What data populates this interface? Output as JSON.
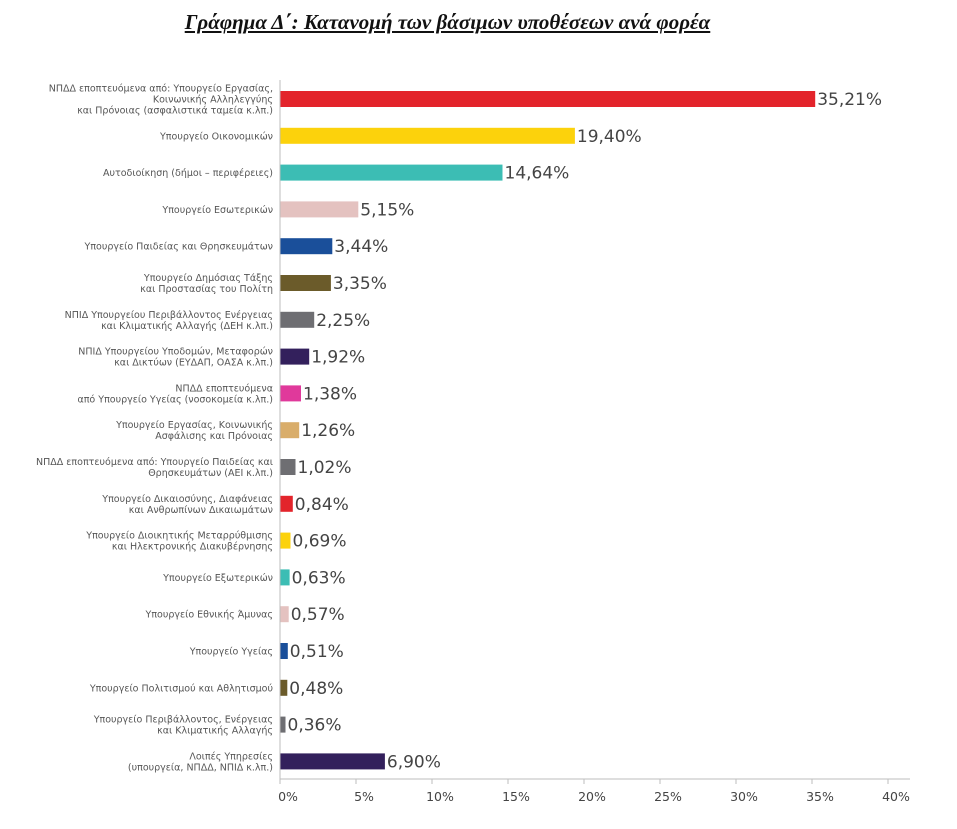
{
  "chart_data": {
    "type": "bar",
    "orientation": "horizontal",
    "title": "Γράφημα Δ΄: Κατανομή των βάσιμων υποθέσεων ανά φορέα",
    "xlabel": "",
    "ylabel": "",
    "xlim": [
      0,
      40
    ],
    "x_ticks": [
      "0%",
      "5%",
      "10%",
      "15%",
      "20%",
      "25%",
      "30%",
      "35%",
      "40%"
    ],
    "grid": false,
    "legend": "none",
    "categories": [
      [
        "ΝΠΔΔ εποπτευόμενα από: Υπουργείο  Εργασίας,",
        "Κοινωνικής Αλληλεγγύης",
        "και Πρόνοιας (ασφαλιστικά ταμεία κ.λπ.)"
      ],
      [
        "Υπουργείο Οικονομικών"
      ],
      [
        "Αυτοδιοίκηση (δήμοι – περιφέρειες)"
      ],
      [
        "Υπουργείο Εσωτερικών"
      ],
      [
        "Υπουργείο Παιδείας και Θρησκευμάτων"
      ],
      [
        "Υπουργείο Δημόσιας Τάξης",
        "και Προστασίας του Πολίτη"
      ],
      [
        "ΝΠΙΔ Υπουργείου Περιβάλλοντος Ενέργειας",
        "και Κλιματικής Αλλαγής (ΔΕΗ κ.λπ.)"
      ],
      [
        "ΝΠΙΔ Υπουργείου Υποδομών, Μεταφορών",
        "και Δικτύων (ΕΥΔΑΠ, ΟΑΣΑ κ.λπ.)"
      ],
      [
        "ΝΠΔΔ εποπτευόμενα",
        "από Υπουργείο Υγείας (νοσοκομεία κ.λπ.)"
      ],
      [
        "Υπουργείο Εργασίας, Κοινωνικής",
        "Ασφάλισης και Πρόνοιας"
      ],
      [
        "ΝΠΔΔ εποπτευόμενα από: Υπουργείο Παιδείας και",
        "Θρησκευμάτων (ΑΕΙ κ.λπ.)"
      ],
      [
        "Υπουργείο Δικαιοσύνης, Διαφάνειας",
        "και Ανθρωπίνων Δικαιωμάτων"
      ],
      [
        "Υπουργείο Διοικητικής Μεταρρύθμισης",
        "και Ηλεκτρονικής Διακυβέρνησης"
      ],
      [
        "Υπουργείο Εξωτερικών"
      ],
      [
        "Υπουργείο Εθνικής Άμυνας"
      ],
      [
        "Υπουργείο Υγείας"
      ],
      [
        "Υπουργείο Πολιτισμού και Αθλητισμού"
      ],
      [
        "Υπουργείο Περιβάλλοντος, Ενέργειας",
        "και Κλιματικής Αλλαγής"
      ],
      [
        "Λοιπές Υπηρεσίες",
        "(υπουργεία, ΝΠΔΔ, ΝΠΙΔ κ.λπ.)"
      ]
    ],
    "values": [
      35.21,
      19.4,
      14.64,
      5.15,
      3.44,
      3.35,
      2.25,
      1.92,
      1.38,
      1.26,
      1.02,
      0.84,
      0.69,
      0.63,
      0.57,
      0.51,
      0.48,
      0.36,
      6.9
    ],
    "value_labels": [
      "35,21%",
      "19,40%",
      "14,64%",
      "5,15%",
      "3,44%",
      "3,35%",
      "2,25%",
      "1,92%",
      "1,38%",
      "1,26%",
      "1,02%",
      "0,84%",
      "0,69%",
      "0,63%",
      "0,57%",
      "0,51%",
      "0,48%",
      "0,36%",
      "6,90%"
    ],
    "colors": [
      "#e3242b",
      "#fcd20c",
      "#3cbdb4",
      "#e4c2c0",
      "#1a4f9a",
      "#6b5b2a",
      "#6e6e72",
      "#33205c",
      "#e0399b",
      "#d9ad6a",
      "#6e6e72",
      "#e3242b",
      "#fcd20c",
      "#3cbdb4",
      "#e4c2c0",
      "#1a4f9a",
      "#6b5b2a",
      "#6e6e72",
      "#33205c"
    ]
  }
}
